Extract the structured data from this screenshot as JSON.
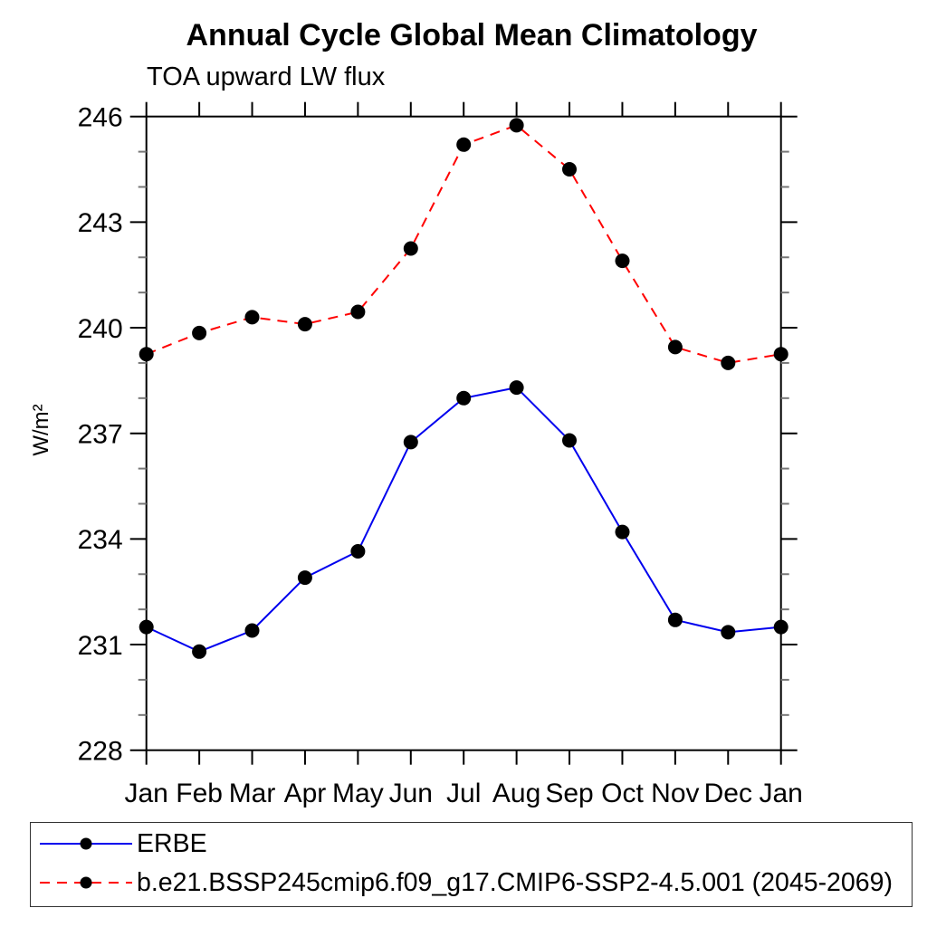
{
  "page": {
    "background_color": "#ffffff",
    "text_color": "#000000",
    "axis_color": "#000000"
  },
  "chart_data": {
    "type": "line",
    "title": "Annual Cycle Global Mean Climatology",
    "subtitle": "TOA upward LW flux",
    "xlabel": "",
    "ylabel": "W/m²",
    "categories": [
      "Jan",
      "Feb",
      "Mar",
      "Apr",
      "May",
      "Jun",
      "Jul",
      "Aug",
      "Sep",
      "Oct",
      "Nov",
      "Dec",
      "Jan"
    ],
    "ylim": [
      228,
      246
    ],
    "y_major_step": 3,
    "y_minor_step": 1,
    "y_major_ticks": [
      228,
      231,
      234,
      237,
      240,
      243,
      246
    ],
    "grid": false,
    "legend_position": "bottom-left-box",
    "marker": {
      "shape": "circle",
      "color": "#000000",
      "radius": 8
    },
    "series": [
      {
        "name": "ERBE",
        "color": "#0000ee",
        "style": "solid",
        "values": [
          231.5,
          230.8,
          231.4,
          232.9,
          233.65,
          236.75,
          238.0,
          238.3,
          236.8,
          234.2,
          231.7,
          231.35,
          231.5
        ]
      },
      {
        "name": "b.e21.BSSP245cmip6.f09_g17.CMIP6-SSP2-4.5.001 (2045-2069)",
        "color": "#ff0000",
        "style": "dashed",
        "values": [
          239.25,
          239.85,
          240.3,
          240.1,
          240.45,
          242.25,
          245.2,
          245.75,
          244.5,
          241.9,
          239.45,
          239.0,
          239.25
        ]
      }
    ]
  }
}
